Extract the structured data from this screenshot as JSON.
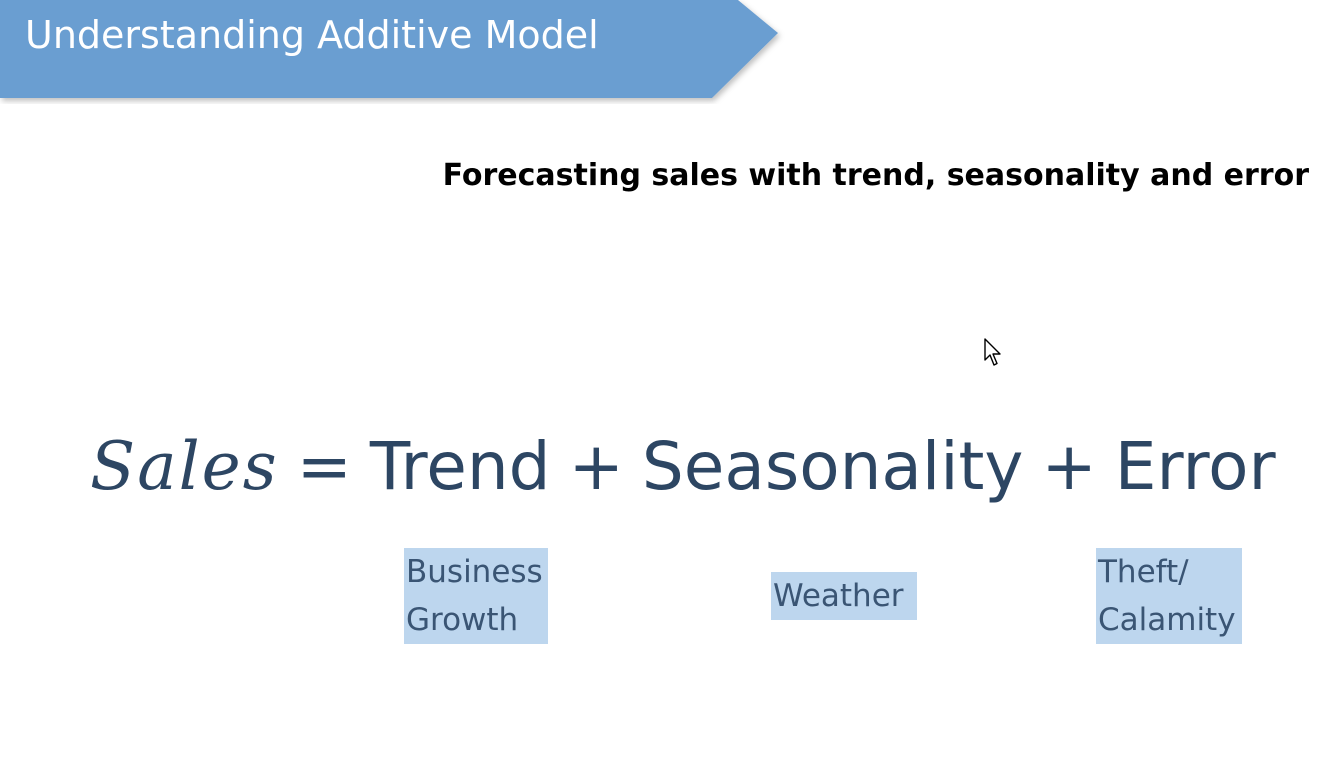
{
  "header": {
    "title": "Understanding Additive Model",
    "banner_color": "#6a9ed1"
  },
  "subtitle": "Forecasting sales with trend, seasonality and error",
  "equation": {
    "lhs": "Sales",
    "equals": "=",
    "terms": [
      "Trend",
      "Seasonality",
      "Error"
    ],
    "plus": "+",
    "color": "#2d4663"
  },
  "labels": {
    "trend": [
      "Business",
      "Growth"
    ],
    "seasonality": [
      "Weather"
    ],
    "error": [
      "Theft/",
      "Calamity"
    ],
    "highlight_color": "#bdd6ee"
  },
  "icons": {
    "cursor": "mouse-pointer-icon"
  }
}
